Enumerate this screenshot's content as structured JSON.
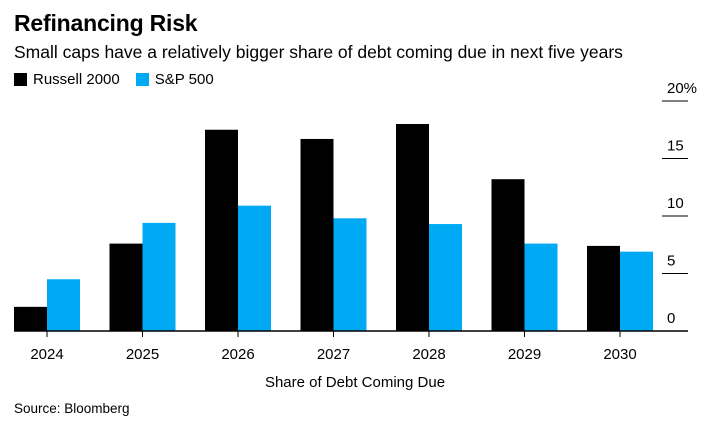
{
  "title": "Refinancing Risk",
  "subtitle": "Small caps have a relatively bigger share of debt coming due in next five years",
  "source": "Source: Bloomberg",
  "colors": {
    "russell": "#000000",
    "sp500": "#00a9f4",
    "axis": "#000000",
    "tick": "#000000"
  },
  "legend": [
    {
      "label": "Russell 2000",
      "color": "#000000"
    },
    {
      "label": "S&P 500",
      "color": "#00a9f4"
    }
  ],
  "chart_data": {
    "type": "bar",
    "title": "Refinancing Risk",
    "subtitle": "Small caps have a relatively bigger share of debt coming due in next five years",
    "categories": [
      "2024",
      "2025",
      "2026",
      "2027",
      "2028",
      "2029",
      "2030"
    ],
    "series": [
      {
        "name": "Russell 2000",
        "values": [
          2.1,
          7.6,
          17.5,
          16.7,
          18.0,
          13.2,
          7.4
        ]
      },
      {
        "name": "S&P 500",
        "values": [
          4.5,
          9.4,
          10.9,
          9.8,
          9.3,
          7.6,
          6.9
        ]
      }
    ],
    "xlabel": "Share of Debt Coming Due",
    "ylabel": "",
    "ylim": [
      0,
      20
    ],
    "yticks": [
      0,
      5,
      10,
      15,
      20
    ],
    "ytick_labels": [
      "0",
      "5",
      "10",
      "15",
      "20%"
    ],
    "grid": false,
    "legend_position": "top-left",
    "source": "Source: Bloomberg"
  }
}
